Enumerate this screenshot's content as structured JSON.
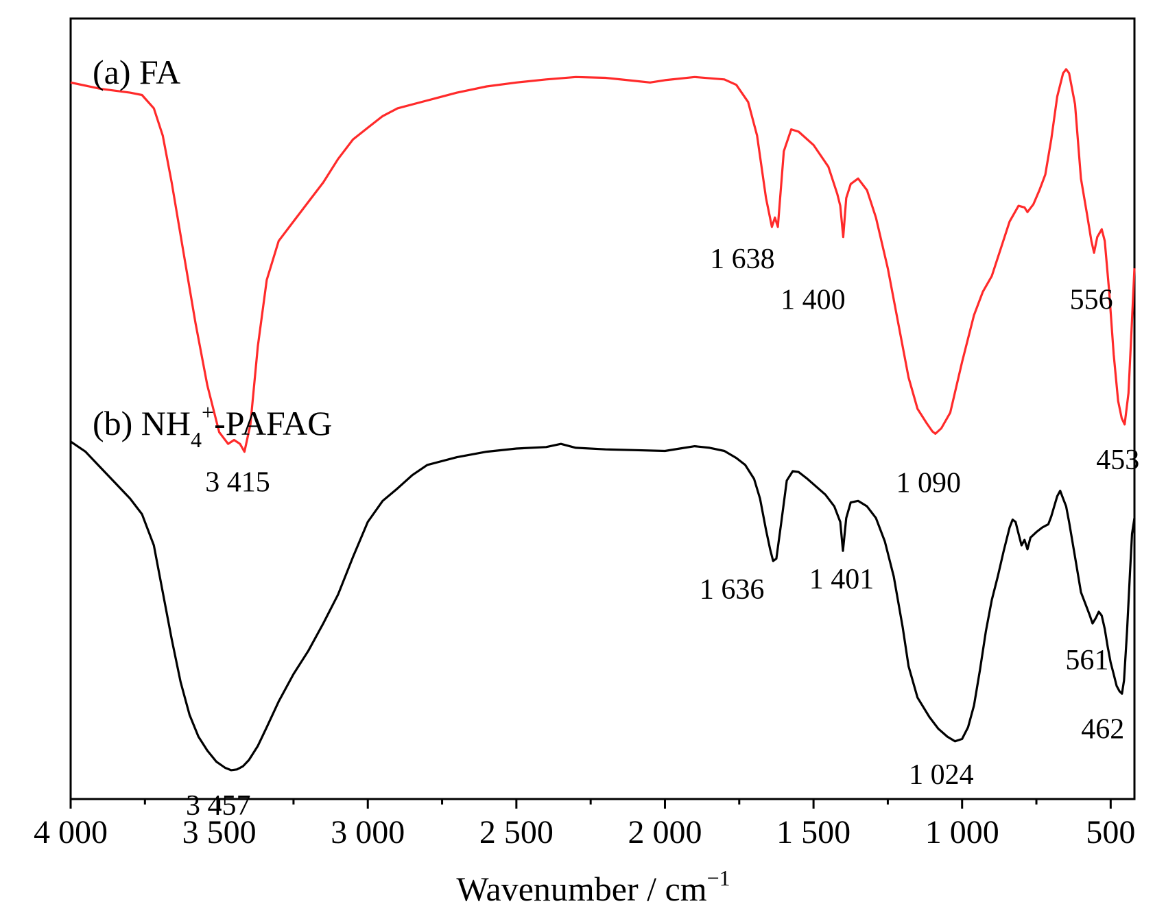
{
  "chart_data": {
    "type": "line",
    "xlabel": "Wavenumber / cm",
    "xlabel_sup": "−1",
    "xlim": [
      4000,
      420
    ],
    "x_reversed": true,
    "ylim": [
      0,
      1
    ],
    "y_ticks_shown": false,
    "grid": false,
    "x_ticks_major": [
      4000,
      3500,
      3000,
      2500,
      2000,
      1500,
      1000,
      500
    ],
    "x_tick_labels": [
      "4 000",
      "3 500",
      "3 000",
      "2 500",
      "2 000",
      "1 500",
      "1 000",
      "500"
    ],
    "x_ticks_minor": [
      3750,
      3250,
      2750,
      2250,
      1750,
      1250,
      750
    ],
    "series": [
      {
        "name": "(a) FA",
        "name_parts": [
          "(a) FA"
        ],
        "color": "#ff2a2a",
        "x": [
          4000,
          3900,
          3800,
          3760,
          3720,
          3690,
          3660,
          3620,
          3580,
          3540,
          3500,
          3470,
          3450,
          3430,
          3415,
          3395,
          3370,
          3340,
          3300,
          3250,
          3200,
          3150,
          3100,
          3050,
          3000,
          2950,
          2900,
          2800,
          2700,
          2600,
          2500,
          2400,
          2300,
          2200,
          2100,
          2050,
          2000,
          1900,
          1800,
          1760,
          1720,
          1690,
          1660,
          1640,
          1630,
          1620,
          1600,
          1575,
          1550,
          1500,
          1450,
          1420,
          1410,
          1400,
          1390,
          1375,
          1350,
          1320,
          1290,
          1250,
          1210,
          1180,
          1150,
          1120,
          1100,
          1090,
          1070,
          1040,
          1000,
          960,
          930,
          900,
          870,
          840,
          810,
          790,
          780,
          760,
          740,
          720,
          700,
          680,
          660,
          650,
          640,
          620,
          600,
          580,
          565,
          556,
          545,
          530,
          520,
          505,
          490,
          475,
          463,
          453,
          440,
          430,
          420
        ],
        "y": [
          0.918,
          0.91,
          0.905,
          0.902,
          0.885,
          0.85,
          0.79,
          0.7,
          0.61,
          0.53,
          0.47,
          0.455,
          0.46,
          0.455,
          0.445,
          0.48,
          0.58,
          0.665,
          0.715,
          0.74,
          0.765,
          0.79,
          0.82,
          0.845,
          0.86,
          0.875,
          0.885,
          0.895,
          0.905,
          0.913,
          0.918,
          0.922,
          0.925,
          0.924,
          0.92,
          0.918,
          0.921,
          0.925,
          0.922,
          0.915,
          0.893,
          0.85,
          0.77,
          0.733,
          0.745,
          0.733,
          0.83,
          0.858,
          0.855,
          0.838,
          0.81,
          0.775,
          0.76,
          0.72,
          0.77,
          0.788,
          0.795,
          0.78,
          0.745,
          0.68,
          0.6,
          0.54,
          0.5,
          0.482,
          0.471,
          0.468,
          0.475,
          0.495,
          0.56,
          0.62,
          0.65,
          0.67,
          0.705,
          0.74,
          0.76,
          0.758,
          0.752,
          0.762,
          0.78,
          0.8,
          0.845,
          0.9,
          0.93,
          0.935,
          0.93,
          0.89,
          0.795,
          0.75,
          0.715,
          0.7,
          0.72,
          0.73,
          0.715,
          0.65,
          0.57,
          0.51,
          0.488,
          0.48,
          0.52,
          0.6,
          0.68
        ],
        "annotations": [
          "3 415",
          "1 638",
          "1 400",
          "1 090",
          "556",
          "453"
        ]
      },
      {
        "name": "(b) NH4+-PAFAG",
        "name_parts": [
          "(b) NH",
          "4",
          "+",
          "-PAFAG"
        ],
        "color": "#000000",
        "x": [
          4000,
          3950,
          3900,
          3850,
          3800,
          3760,
          3720,
          3690,
          3660,
          3630,
          3600,
          3570,
          3540,
          3510,
          3480,
          3460,
          3440,
          3420,
          3400,
          3370,
          3340,
          3300,
          3250,
          3200,
          3150,
          3100,
          3050,
          3000,
          2950,
          2900,
          2850,
          2800,
          2700,
          2600,
          2500,
          2400,
          2350,
          2300,
          2200,
          2100,
          2000,
          1950,
          1900,
          1850,
          1800,
          1760,
          1730,
          1700,
          1680,
          1660,
          1646,
          1636,
          1625,
          1610,
          1590,
          1570,
          1550,
          1520,
          1490,
          1460,
          1430,
          1410,
          1401,
          1390,
          1375,
          1350,
          1320,
          1290,
          1260,
          1230,
          1200,
          1180,
          1150,
          1110,
          1080,
          1050,
          1024,
          1000,
          980,
          960,
          940,
          920,
          900,
          880,
          860,
          840,
          830,
          820,
          810,
          800,
          790,
          780,
          770,
          750,
          730,
          710,
          700,
          690,
          680,
          670,
          660,
          650,
          640,
          620,
          600,
          580,
          570,
          561,
          550,
          540,
          530,
          520,
          510,
          500,
          490,
          480,
          470,
          462,
          455,
          445,
          435,
          428,
          420
        ],
        "y": [
          0.458,
          0.445,
          0.425,
          0.405,
          0.385,
          0.365,
          0.325,
          0.265,
          0.205,
          0.15,
          0.108,
          0.08,
          0.062,
          0.048,
          0.04,
          0.037,
          0.038,
          0.042,
          0.05,
          0.068,
          0.092,
          0.125,
          0.16,
          0.19,
          0.225,
          0.262,
          0.31,
          0.355,
          0.382,
          0.398,
          0.415,
          0.428,
          0.438,
          0.445,
          0.449,
          0.451,
          0.455,
          0.45,
          0.448,
          0.447,
          0.446,
          0.449,
          0.452,
          0.45,
          0.446,
          0.437,
          0.428,
          0.41,
          0.385,
          0.345,
          0.32,
          0.305,
          0.308,
          0.35,
          0.408,
          0.42,
          0.419,
          0.41,
          0.4,
          0.39,
          0.375,
          0.355,
          0.318,
          0.36,
          0.38,
          0.382,
          0.375,
          0.36,
          0.33,
          0.285,
          0.22,
          0.17,
          0.13,
          0.105,
          0.09,
          0.08,
          0.074,
          0.077,
          0.092,
          0.12,
          0.165,
          0.215,
          0.255,
          0.285,
          0.318,
          0.348,
          0.358,
          0.355,
          0.34,
          0.325,
          0.332,
          0.32,
          0.335,
          0.342,
          0.348,
          0.352,
          0.362,
          0.375,
          0.388,
          0.395,
          0.385,
          0.375,
          0.355,
          0.31,
          0.265,
          0.245,
          0.235,
          0.225,
          0.232,
          0.24,
          0.235,
          0.218,
          0.195,
          0.175,
          0.16,
          0.145,
          0.138,
          0.135,
          0.152,
          0.215,
          0.29,
          0.34,
          0.36
        ]
      }
    ],
    "annotations": [
      {
        "series": 0,
        "label": "3 415",
        "x": 3415,
        "y": 0.445
      },
      {
        "series": 0,
        "label": "1 638",
        "x": 1638,
        "y": 0.733
      },
      {
        "series": 0,
        "label": "1 400",
        "x": 1400,
        "y": 0.72
      },
      {
        "series": 0,
        "label": "1 090",
        "x": 1090,
        "y": 0.468
      },
      {
        "series": 0,
        "label": "556",
        "x": 556,
        "y": 0.7
      },
      {
        "series": 0,
        "label": "453",
        "x": 453,
        "y": 0.48
      },
      {
        "series": 1,
        "label": "3 457",
        "x": 3457,
        "y": 0.037
      },
      {
        "series": 1,
        "label": "1 636",
        "x": 1636,
        "y": 0.305
      },
      {
        "series": 1,
        "label": "1 401",
        "x": 1401,
        "y": 0.318
      },
      {
        "series": 1,
        "label": "1 024",
        "x": 1024,
        "y": 0.074
      },
      {
        "series": 1,
        "label": "561",
        "x": 561,
        "y": 0.225
      },
      {
        "series": 1,
        "label": "462",
        "x": 462,
        "y": 0.135
      }
    ]
  }
}
